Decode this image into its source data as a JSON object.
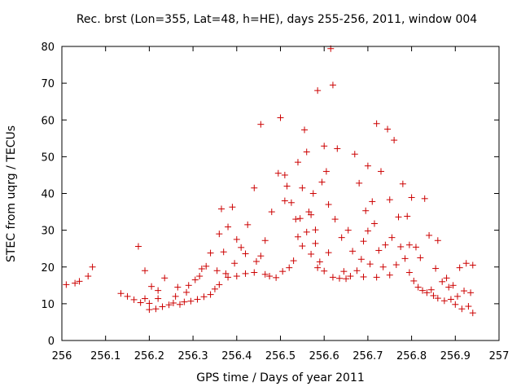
{
  "chart_data": {
    "type": "scatter",
    "title": "Rec. brst (Lon=355, Lat=48, h=HE), days 255-256, 2011, window 004",
    "xlabel": "GPS time / Days of year 2011",
    "ylabel": "STEC from uqrg / TECUs",
    "xlim": [
      256,
      257
    ],
    "ylim": [
      0,
      80
    ],
    "xticks": [
      "256",
      "256.1",
      "256.2",
      "256.3",
      "256.4",
      "256.5",
      "256.6",
      "256.7",
      "256.8",
      "256.9",
      "257"
    ],
    "yticks": [
      "0",
      "10",
      "20",
      "30",
      "40",
      "50",
      "60",
      "70",
      "80"
    ],
    "marker": "+",
    "marker_color": "#cc0000",
    "series": [
      {
        "name": "STEC",
        "points": [
          [
            256.01,
            15.2
          ],
          [
            256.03,
            15.6
          ],
          [
            256.04,
            16.1
          ],
          [
            256.06,
            17.5
          ],
          [
            256.07,
            20.0
          ],
          [
            256.135,
            12.8
          ],
          [
            256.15,
            12.0
          ],
          [
            256.165,
            11.1
          ],
          [
            256.175,
            25.6
          ],
          [
            256.18,
            10.3
          ],
          [
            256.19,
            11.4
          ],
          [
            256.19,
            19.0
          ],
          [
            256.2,
            8.4
          ],
          [
            256.2,
            10.1
          ],
          [
            256.205,
            14.7
          ],
          [
            256.215,
            8.6
          ],
          [
            256.22,
            11.4
          ],
          [
            256.22,
            13.6
          ],
          [
            256.23,
            9.2
          ],
          [
            256.235,
            17.0
          ],
          [
            256.245,
            9.7
          ],
          [
            256.255,
            10.2
          ],
          [
            256.26,
            12.0
          ],
          [
            256.265,
            14.5
          ],
          [
            256.27,
            9.8
          ],
          [
            256.28,
            10.5
          ],
          [
            256.285,
            13.1
          ],
          [
            256.29,
            15.0
          ],
          [
            256.295,
            10.7
          ],
          [
            256.305,
            16.5
          ],
          [
            256.31,
            11.2
          ],
          [
            256.315,
            17.5
          ],
          [
            256.32,
            19.5
          ],
          [
            256.325,
            11.9
          ],
          [
            256.33,
            20.2
          ],
          [
            256.34,
            12.5
          ],
          [
            256.34,
            23.8
          ],
          [
            256.35,
            14.0
          ],
          [
            256.355,
            19.0
          ],
          [
            256.36,
            15.2
          ],
          [
            256.36,
            29.0
          ],
          [
            256.365,
            35.8
          ],
          [
            256.37,
            24.1
          ],
          [
            256.375,
            18.2
          ],
          [
            256.38,
            17.2
          ],
          [
            256.38,
            30.9
          ],
          [
            256.39,
            36.3
          ],
          [
            256.395,
            21.0
          ],
          [
            256.4,
            17.5
          ],
          [
            256.4,
            27.5
          ],
          [
            256.41,
            25.3
          ],
          [
            256.42,
            18.2
          ],
          [
            256.42,
            23.6
          ],
          [
            256.425,
            31.5
          ],
          [
            256.44,
            18.5
          ],
          [
            256.44,
            41.5
          ],
          [
            256.445,
            21.5
          ],
          [
            256.455,
            23.0
          ],
          [
            256.455,
            58.8
          ],
          [
            256.465,
            18.0
          ],
          [
            256.465,
            27.2
          ],
          [
            256.475,
            17.5
          ],
          [
            256.48,
            35.0
          ],
          [
            256.49,
            17.1
          ],
          [
            256.495,
            45.5
          ],
          [
            256.5,
            60.6
          ],
          [
            256.505,
            18.8
          ],
          [
            256.51,
            38.0
          ],
          [
            256.51,
            45.0
          ],
          [
            256.515,
            42.0
          ],
          [
            256.52,
            19.8
          ],
          [
            256.525,
            37.5
          ],
          [
            256.53,
            21.7
          ],
          [
            256.535,
            33.0
          ],
          [
            256.54,
            48.5
          ],
          [
            256.54,
            28.2
          ],
          [
            256.545,
            33.2
          ],
          [
            256.55,
            25.7
          ],
          [
            256.55,
            41.5
          ],
          [
            256.555,
            57.3
          ],
          [
            256.56,
            29.5
          ],
          [
            256.56,
            51.3
          ],
          [
            256.565,
            35.0
          ],
          [
            256.57,
            23.5
          ],
          [
            256.57,
            34.2
          ],
          [
            256.575,
            40.0
          ],
          [
            256.58,
            26.4
          ],
          [
            256.58,
            30.1
          ],
          [
            256.585,
            19.8
          ],
          [
            256.585,
            68.0
          ],
          [
            256.59,
            21.4
          ],
          [
            256.595,
            43.1
          ],
          [
            256.6,
            18.9
          ],
          [
            256.6,
            52.9
          ],
          [
            256.605,
            46.0
          ],
          [
            256.61,
            23.9
          ],
          [
            256.61,
            37.0
          ],
          [
            256.615,
            79.4
          ],
          [
            256.62,
            17.2
          ],
          [
            256.62,
            69.5
          ],
          [
            256.625,
            33.0
          ],
          [
            256.63,
            52.2
          ],
          [
            256.635,
            16.9
          ],
          [
            256.64,
            28.0
          ],
          [
            256.645,
            18.8
          ],
          [
            256.65,
            16.8
          ],
          [
            256.655,
            30.0
          ],
          [
            256.66,
            17.5
          ],
          [
            256.665,
            24.3
          ],
          [
            256.67,
            50.7
          ],
          [
            256.675,
            19.0
          ],
          [
            256.68,
            42.8
          ],
          [
            256.685,
            22.1
          ],
          [
            256.69,
            17.3
          ],
          [
            256.69,
            27.0
          ],
          [
            256.695,
            35.3
          ],
          [
            256.7,
            29.8
          ],
          [
            256.7,
            47.5
          ],
          [
            256.705,
            20.8
          ],
          [
            256.71,
            37.8
          ],
          [
            256.715,
            31.8
          ],
          [
            256.72,
            17.2
          ],
          [
            256.72,
            59.0
          ],
          [
            256.725,
            24.5
          ],
          [
            256.73,
            46.0
          ],
          [
            256.735,
            20.0
          ],
          [
            256.74,
            26.0
          ],
          [
            256.745,
            57.5
          ],
          [
            256.75,
            17.8
          ],
          [
            256.75,
            38.3
          ],
          [
            256.755,
            28.0
          ],
          [
            256.76,
            54.5
          ],
          [
            256.765,
            20.6
          ],
          [
            256.77,
            33.6
          ],
          [
            256.775,
            25.5
          ],
          [
            256.78,
            42.6
          ],
          [
            256.785,
            22.3
          ],
          [
            256.79,
            33.8
          ],
          [
            256.795,
            18.5
          ],
          [
            256.795,
            26.0
          ],
          [
            256.8,
            38.9
          ],
          [
            256.805,
            16.2
          ],
          [
            256.81,
            25.4
          ],
          [
            256.815,
            14.5
          ],
          [
            256.82,
            22.5
          ],
          [
            256.825,
            13.6
          ],
          [
            256.83,
            38.6
          ],
          [
            256.835,
            13.0
          ],
          [
            256.84,
            28.6
          ],
          [
            256.845,
            13.8
          ],
          [
            256.85,
            12.2
          ],
          [
            256.855,
            19.6
          ],
          [
            256.86,
            27.2
          ],
          [
            256.86,
            11.5
          ],
          [
            256.87,
            16.0
          ],
          [
            256.875,
            10.8
          ],
          [
            256.88,
            17.0
          ],
          [
            256.885,
            14.5
          ],
          [
            256.89,
            11.2
          ],
          [
            256.895,
            15.0
          ],
          [
            256.9,
            9.8
          ],
          [
            256.905,
            12.0
          ],
          [
            256.91,
            19.8
          ],
          [
            256.915,
            8.6
          ],
          [
            256.92,
            13.5
          ],
          [
            256.925,
            21.0
          ],
          [
            256.93,
            9.3
          ],
          [
            256.935,
            13.0
          ],
          [
            256.94,
            20.5
          ],
          [
            256.94,
            7.5
          ]
        ]
      }
    ]
  }
}
